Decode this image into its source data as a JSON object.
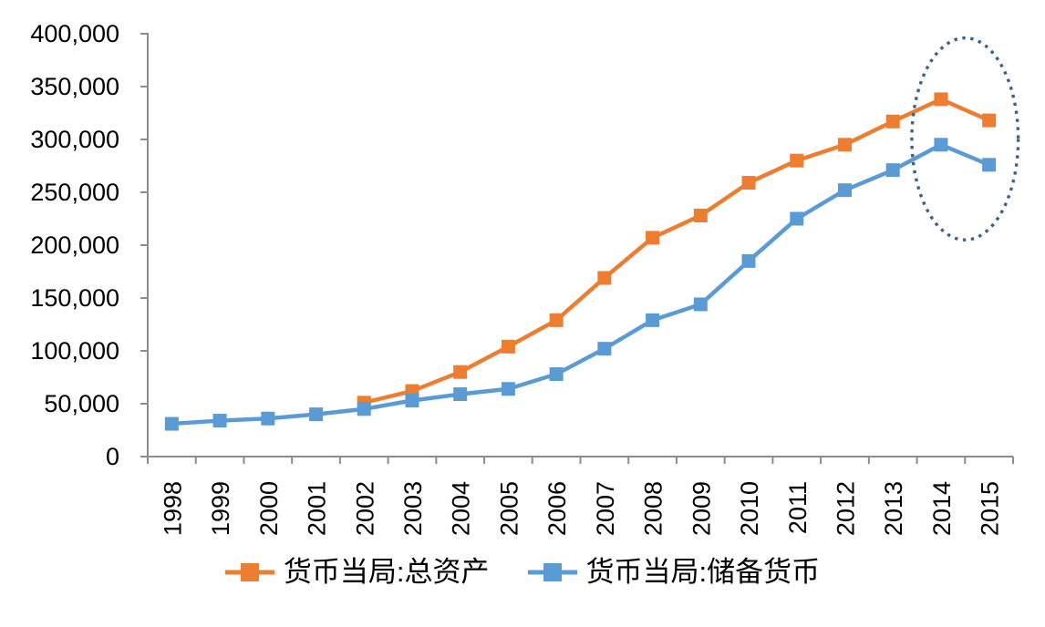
{
  "chart_data": {
    "type": "line",
    "categories": [
      "1998",
      "1999",
      "2000",
      "2001",
      "2002",
      "2003",
      "2004",
      "2005",
      "2006",
      "2007",
      "2008",
      "2009",
      "2010",
      "2011",
      "2012",
      "2013",
      "2014",
      "2015"
    ],
    "series": [
      {
        "name": "货币当局:总资产",
        "color": "#ED7D31",
        "marker": "square",
        "values": [
          null,
          null,
          null,
          null,
          51000,
          62000,
          80000,
          104000,
          129000,
          169000,
          207000,
          228000,
          259000,
          280000,
          295000,
          317000,
          338000,
          318000
        ]
      },
      {
        "name": "货币当局:储备货币",
        "color": "#5B9BD5",
        "marker": "square",
        "values": [
          31000,
          34000,
          36000,
          40000,
          45000,
          53000,
          59000,
          64000,
          78000,
          102000,
          129000,
          144000,
          185000,
          225000,
          252000,
          271000,
          295000,
          276000
        ]
      }
    ],
    "ylim": [
      0,
      400000
    ],
    "y_tick_step": 50000,
    "y_tick_labels": [
      "400,000",
      "350,000",
      "300,000",
      "250,000",
      "200,000",
      "150,000",
      "100,000",
      "50,000",
      "0"
    ],
    "xlabel": "",
    "ylabel": "",
    "grid": false,
    "legend_position": "bottom",
    "axis_color": "#8C8C8C",
    "text_color": "#000000",
    "annotation": {
      "shape": "ellipse",
      "line_style": "dotted",
      "color": "#3E6188",
      "highlights_categories": [
        "2014",
        "2015"
      ],
      "value_span": [
        205000,
        396000
      ]
    }
  }
}
